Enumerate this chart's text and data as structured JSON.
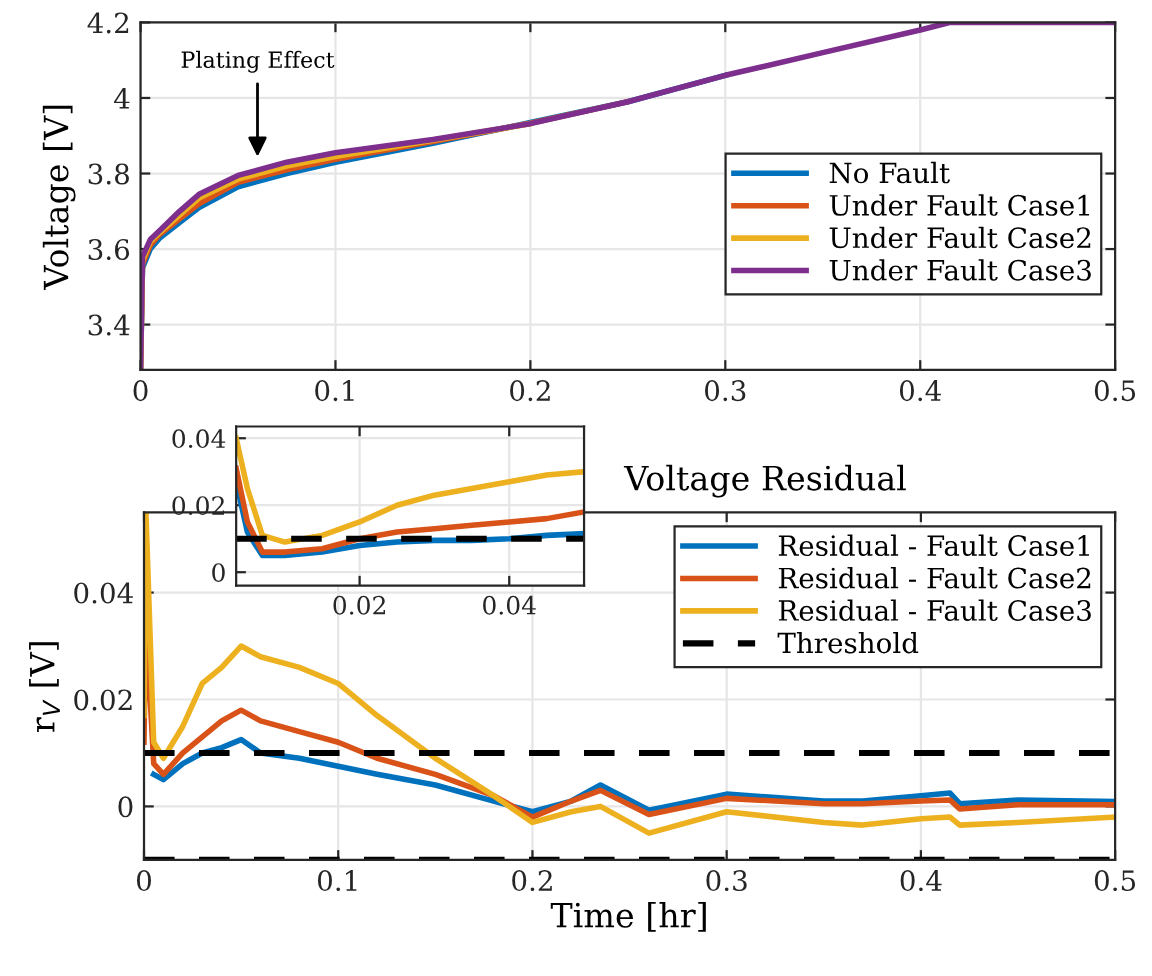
{
  "chart_data": [
    {
      "type": "line",
      "ylabel": "Voltage [V]",
      "xlim": [
        0,
        0.5
      ],
      "ylim": [
        3.28,
        4.2
      ],
      "xticks": [
        0,
        0.1,
        0.2,
        0.3,
        0.4,
        0.5
      ],
      "yticks": [
        3.4,
        3.6,
        3.8,
        4,
        4.2
      ],
      "grid": true,
      "legend": "right",
      "line_style": "solid",
      "marker": "none",
      "x": [
        0,
        0.001,
        0.005,
        0.01,
        0.02,
        0.03,
        0.05,
        0.075,
        0.1,
        0.15,
        0.2,
        0.25,
        0.3,
        0.35,
        0.4,
        0.415,
        0.5
      ],
      "series": [
        {
          "name": "No Fault",
          "color": "#0072bd",
          "values": [
            3.28,
            3.55,
            3.6,
            3.63,
            3.67,
            3.71,
            3.765,
            3.8,
            3.83,
            3.88,
            3.935,
            3.99,
            4.06,
            null,
            null,
            null,
            null
          ]
        },
        {
          "name": "Under Fault Case1",
          "color": "#d95319",
          "values": [
            3.28,
            3.56,
            3.61,
            3.64,
            3.68,
            3.72,
            3.777,
            3.81,
            3.838,
            3.885,
            3.933,
            3.99,
            null,
            null,
            null,
            null,
            null
          ]
        },
        {
          "name": "Under Fault Case2",
          "color": "#edb120",
          "values": [
            3.28,
            3.57,
            3.62,
            3.645,
            3.69,
            3.735,
            3.785,
            3.82,
            3.845,
            3.888,
            3.932,
            null,
            null,
            null,
            null,
            null,
            null
          ]
        },
        {
          "name": "Under Fault Case3",
          "color": "#7e2f8e",
          "values": [
            3.28,
            3.58,
            3.625,
            3.65,
            3.7,
            3.745,
            3.795,
            3.83,
            3.855,
            3.89,
            3.932,
            3.99,
            4.06,
            4.12,
            4.18,
            4.2,
            4.2
          ]
        }
      ],
      "annotations": [
        {
          "text": "Plating Effect",
          "x": 0.06,
          "y": 3.83
        }
      ]
    },
    {
      "type": "line",
      "title": "Voltage Residual",
      "xlabel": "Time [hr]",
      "ylabel": "r$_{V}$ [V]",
      "xlim": [
        0,
        0.5
      ],
      "ylim": [
        -0.01,
        0.055
      ],
      "xticks": [
        0,
        0.1,
        0.2,
        0.3,
        0.4,
        0.5
      ],
      "yticks": [
        0,
        0.02,
        0.04
      ],
      "grid": true,
      "legend": "top right",
      "line_style": "solid",
      "marker": "none",
      "x": [
        0,
        0.001,
        0.005,
        0.01,
        0.02,
        0.03,
        0.04,
        0.05,
        0.06,
        0.08,
        0.1,
        0.12,
        0.15,
        0.18,
        0.2,
        0.22,
        0.235,
        0.26,
        0.3,
        0.35,
        0.37,
        0.4,
        0.415,
        0.42,
        0.45,
        0.5
      ],
      "series": [
        {
          "name": "Residual - Fault Case1",
          "color": "#0072bd",
          "values": [
            null,
            null,
            0.006,
            0.005,
            0.008,
            0.01,
            0.011,
            0.0125,
            0.01,
            0.009,
            0.0075,
            0.006,
            0.004,
            0.001,
            -0.001,
            0.001,
            0.004,
            -0.0007,
            0.0023,
            0.001,
            0.001,
            0.002,
            0.0025,
            0.0005,
            0.0012,
            0.0009
          ]
        },
        {
          "name": "Residual - Fault Case2",
          "color": "#d95319",
          "values": [
            0.012,
            0.035,
            0.008,
            0.006,
            0.01,
            0.013,
            0.016,
            0.018,
            0.016,
            0.014,
            0.012,
            0.009,
            0.006,
            0.002,
            -0.002,
            0.001,
            0.003,
            -0.0015,
            0.0015,
            0.0005,
            0.0005,
            0.001,
            0.0012,
            -0.0005,
            0.0003,
            0.0003
          ]
        },
        {
          "name": "Residual - Fault Case3",
          "color": "#edb120",
          "values": [
            0.017,
            0.055,
            0.012,
            0.009,
            0.015,
            0.023,
            0.026,
            0.03,
            0.028,
            0.026,
            0.023,
            0.017,
            0.009,
            0.002,
            -0.003,
            -0.001,
            0,
            -0.005,
            -0.001,
            -0.003,
            -0.0035,
            -0.0023,
            -0.002,
            -0.0035,
            -0.003,
            -0.002
          ]
        }
      ],
      "ref_lines": [
        {
          "axis": "y",
          "value": 0.01,
          "label": "Threshold",
          "color": "#000000",
          "line_style": "dashed"
        },
        {
          "axis": "y",
          "value": -0.01,
          "color": "#000000",
          "line_style": "dashed"
        }
      ]
    },
    {
      "type": "line",
      "xlim": [
        0.0035,
        0.05
      ],
      "ylim": [
        -0.004,
        0.0435
      ],
      "xticks": [
        0.02,
        0.04
      ],
      "yticks": [
        0,
        0.02,
        0.04
      ],
      "grid": true,
      "line_style": "solid",
      "marker": "none",
      "x": [
        0.0035,
        0.005,
        0.007,
        0.01,
        0.015,
        0.02,
        0.025,
        0.03,
        0.035,
        0.04,
        0.045,
        0.05
      ],
      "series": [
        {
          "color": "#0072bd",
          "values": [
            0.027,
            0.012,
            0.005,
            0.005,
            0.006,
            0.008,
            0.009,
            0.0095,
            0.0095,
            0.01,
            0.011,
            0.0115
          ]
        },
        {
          "color": "#d95319",
          "values": [
            0.031,
            0.015,
            0.006,
            0.006,
            0.007,
            0.01,
            0.012,
            0.013,
            0.014,
            0.015,
            0.016,
            0.018
          ]
        },
        {
          "color": "#edb120",
          "values": [
            0.04,
            0.025,
            0.011,
            0.009,
            0.011,
            0.015,
            0.02,
            0.023,
            0.025,
            0.027,
            0.029,
            0.03
          ]
        }
      ],
      "ref_lines": [
        {
          "axis": "y",
          "value": 0.01,
          "color": "#000000",
          "line_style": "dashed"
        }
      ]
    }
  ]
}
